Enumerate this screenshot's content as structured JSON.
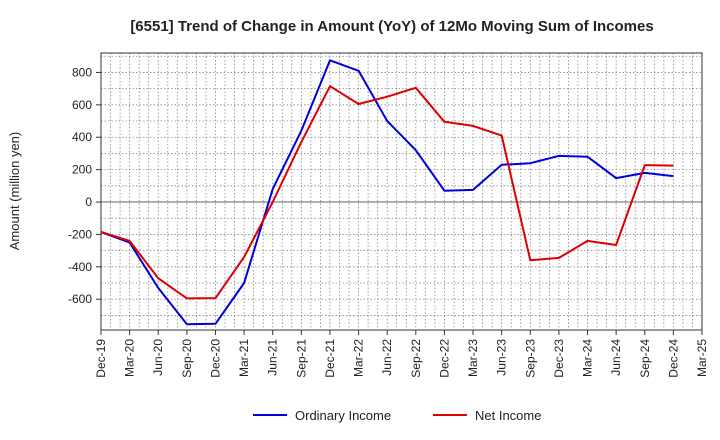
{
  "chart_data": {
    "type": "line",
    "title": "[6551]  Trend of Change in Amount (YoY) of 12Mo Moving Sum of Incomes",
    "xlabel": "",
    "ylabel": "Amount (million yen)",
    "categories": [
      "Dec-19",
      "Mar-20",
      "Jun-20",
      "Sep-20",
      "Dec-20",
      "Mar-21",
      "Jun-21",
      "Sep-21",
      "Dec-21",
      "Mar-22",
      "Jun-22",
      "Sep-22",
      "Dec-22",
      "Mar-23",
      "Jun-23",
      "Sep-23",
      "Dec-23",
      "Mar-24",
      "Jun-24",
      "Sep-24",
      "Dec-24",
      "Mar-25"
    ],
    "yticks": [
      -600,
      -400,
      -200,
      0,
      200,
      400,
      600,
      800
    ],
    "ylim": [
      -790,
      920
    ],
    "grid": true,
    "legend_position": "bottom",
    "series": [
      {
        "name": "Ordinary Income",
        "color": "#0000dd",
        "values": [
          -185,
          -250,
          -530,
          -755,
          -752,
          -500,
          80,
          440,
          875,
          810,
          500,
          320,
          70,
          75,
          230,
          240,
          285,
          280,
          148,
          180,
          160,
          null
        ]
      },
      {
        "name": "Net Income",
        "color": "#dd0000",
        "values": [
          -185,
          -240,
          -470,
          -595,
          -593,
          -340,
          0,
          370,
          715,
          605,
          650,
          705,
          495,
          470,
          410,
          -360,
          -345,
          -240,
          -265,
          228,
          225,
          null
        ]
      }
    ]
  }
}
